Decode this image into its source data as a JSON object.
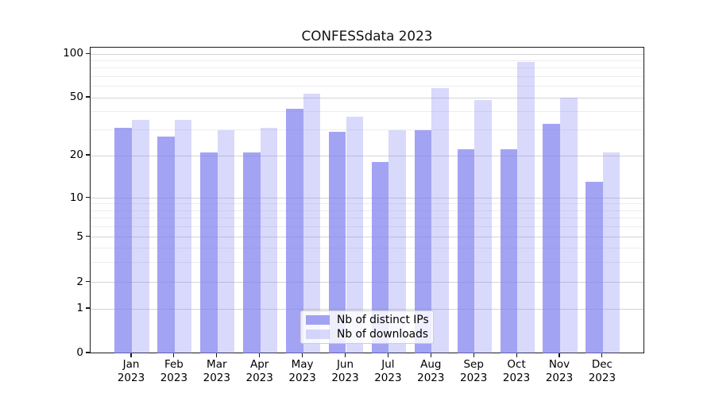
{
  "title": "CONFESSdata 2023",
  "chart_data": {
    "type": "bar",
    "categories": [
      "Jan 2023",
      "Feb 2023",
      "Mar 2023",
      "Apr 2023",
      "May 2023",
      "Jun 2023",
      "Jul 2023",
      "Aug 2023",
      "Sep 2023",
      "Oct 2023",
      "Nov 2023",
      "Dec 2023"
    ],
    "category_months": [
      "Jan",
      "Feb",
      "Mar",
      "Apr",
      "May",
      "Jun",
      "Jul",
      "Aug",
      "Sep",
      "Oct",
      "Nov",
      "Dec"
    ],
    "category_year": "2023",
    "series": [
      {
        "name": "Nb of distinct IPs",
        "color": "#7d7df0",
        "alpha": 0.71,
        "values": [
          31,
          27,
          21,
          21,
          42,
          29,
          18,
          30,
          22,
          22,
          33,
          13
        ]
      },
      {
        "name": "Nb of downloads",
        "color": "#7d7df0",
        "alpha": 0.29,
        "values": [
          35,
          35,
          30,
          31,
          53,
          37,
          30,
          58,
          48,
          88,
          50,
          21
        ]
      }
    ],
    "yaxis": {
      "scale": "symlog-like",
      "tick_values": [
        0,
        1,
        2,
        5,
        10,
        20,
        50,
        100
      ],
      "tick_labels": [
        "0",
        "1",
        "2",
        "5",
        "10",
        "20",
        "50",
        "100"
      ],
      "minor_gridline_values": [
        3,
        4,
        6,
        7,
        8,
        9,
        30,
        40,
        60,
        70,
        80,
        90
      ],
      "ylim": [
        0,
        110
      ]
    },
    "xlabel": "",
    "ylabel": "",
    "grid": "horizontal, major and minor",
    "legend_position": "lower center"
  },
  "legend": {
    "entries": [
      {
        "label": "Nb of distinct IPs"
      },
      {
        "label": "Nb of downloads"
      }
    ]
  },
  "colors": {
    "bar_base": "#7d7df0",
    "bar_dark_rendered": "#a3a3f3",
    "bar_light_rendered": "#d9d9f9",
    "grid_major": "#d4d4d4",
    "grid_minor": "#ededed",
    "spine": "#1a1a1a",
    "background": "#ffffff"
  }
}
